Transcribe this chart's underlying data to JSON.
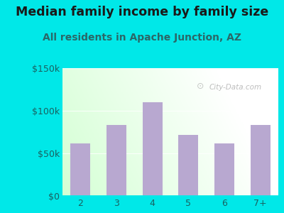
{
  "title": "Median family income by family size",
  "subtitle": "All residents in Apache Junction, AZ",
  "categories": [
    "2",
    "3",
    "4",
    "5",
    "6",
    "7+"
  ],
  "values": [
    62000,
    83000,
    110000,
    72000,
    62000,
    83000
  ],
  "bar_color": "#b8a8d0",
  "title_fontsize": 12.5,
  "subtitle_fontsize": 10,
  "ylim": [
    0,
    150000
  ],
  "yticks": [
    0,
    50000,
    100000,
    150000
  ],
  "ytick_labels": [
    "$0",
    "$50k",
    "$100k",
    "$150k"
  ],
  "bg_outer": "#00e8e8",
  "watermark": "City-Data.com",
  "title_color": "#1a1a1a",
  "subtitle_color": "#2a6868",
  "tick_color": "#1a6060"
}
